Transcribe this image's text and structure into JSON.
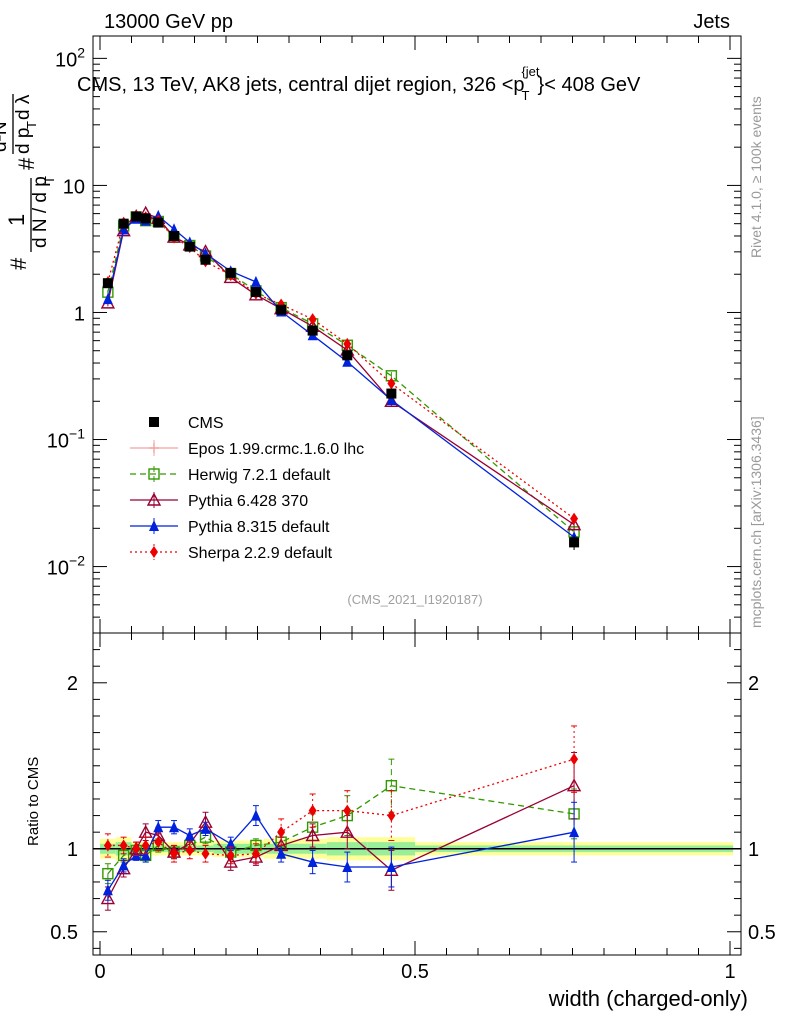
{
  "header": {
    "left": "13000 GeV pp",
    "right": "Jets"
  },
  "title": {
    "main": "CMS, 13 TeV, AK8 jets, central dijet region, 326 <p",
    "sub_T": "T",
    "sup_jet": "{jet",
    "tail": "}< 408 GeV"
  },
  "side_labels": {
    "rivet": "Rivet 4.1.0, ≥ 100k events",
    "mcplots": "mcplots.cern.ch [arXiv:1306.3436]"
  },
  "watermark": "(CMS_2021_I1920187)",
  "y_label_main": {
    "hash1": "#",
    "one": "1",
    "dN": "d N / d p",
    "T1": "T",
    "hash2": "#",
    "dpT": "d p",
    "T2": "T",
    "d2N": "d²N",
    "dlambda": "d λ"
  },
  "y_label_ratio": "Ratio to CMS",
  "x_label": "width (charged-only)",
  "colors": {
    "CMS": "#000000",
    "Epos": "#f4a0a0",
    "Herwig": "#339900",
    "Pythia6": "#990033",
    "Pythia8": "#0022dd",
    "Sherpa": "#ee0000",
    "band_yellow": "#ffff99",
    "band_green": "#99ee99"
  },
  "chart_data": {
    "type": "line",
    "main_panel": {
      "yscale": "log",
      "ylim": [
        0.003,
        150
      ],
      "yticks": [
        {
          "v": 0.01,
          "label": "10",
          "exp": "−2"
        },
        {
          "v": 0.1,
          "label": "10",
          "exp": "−1"
        },
        {
          "v": 1,
          "label": "1",
          "exp": ""
        },
        {
          "v": 10,
          "label": "10",
          "exp": ""
        },
        {
          "v": 100,
          "label": "10",
          "exp": "2"
        }
      ]
    },
    "ratio_panel": {
      "ylim": [
        0.36,
        2.3
      ],
      "yticks": [
        {
          "v": 0.5,
          "label": "0.5"
        },
        {
          "v": 1,
          "label": "1"
        },
        {
          "v": 2,
          "label": "2"
        }
      ]
    },
    "xlim": [
      -0.015,
      1.005
    ],
    "xticks": [
      {
        "v": 0,
        "label": "0"
      },
      {
        "v": 0.5,
        "label": "0.5"
      },
      {
        "v": 1,
        "label": "1"
      }
    ],
    "x": [
      0.0125,
      0.0375,
      0.0575,
      0.0725,
      0.0925,
      0.1175,
      0.1425,
      0.1675,
      0.2075,
      0.2475,
      0.2875,
      0.3375,
      0.3925,
      0.4625,
      0.7525
    ],
    "bin_edges": [
      0,
      0.025,
      0.05,
      0.065,
      0.08,
      0.105,
      0.13,
      0.155,
      0.18,
      0.235,
      0.26,
      0.315,
      0.36,
      0.425,
      0.5,
      1.005
    ],
    "cms": {
      "name": "CMS",
      "values": [
        1.7,
        5.0,
        5.7,
        5.5,
        5.1,
        4.0,
        3.3,
        2.6,
        2.05,
        1.45,
        1.05,
        0.72,
        0.46,
        0.23,
        0.0155
      ],
      "errors": [
        0.1,
        0.2,
        0.2,
        0.2,
        0.2,
        0.15,
        0.12,
        0.1,
        0.08,
        0.06,
        0.05,
        0.04,
        0.03,
        0.02,
        0.002
      ]
    },
    "band_yellow_halfwidth": [
      0.06,
      0.07,
      0.04,
      0.04,
      0.04,
      0.04,
      0.04,
      0.04,
      0.05,
      0.05,
      0.06,
      0.06,
      0.07,
      0.07,
      0.04
    ],
    "band_green_halfwidth": [
      0.03,
      0.04,
      0.02,
      0.02,
      0.02,
      0.02,
      0.02,
      0.02,
      0.03,
      0.03,
      0.03,
      0.03,
      0.04,
      0.04,
      0.02
    ],
    "series": [
      {
        "name": "Epos 1.99.crmc.1.6.0 lhc",
        "key": "Epos",
        "marker": "cross",
        "dash": "",
        "ratio": [],
        "ratio_err": []
      },
      {
        "name": "Herwig 7.2.1 default",
        "key": "Herwig",
        "marker": "square-open",
        "dash": "6,4",
        "ratio": [
          0.85,
          0.96,
          0.99,
          0.96,
          1.02,
          0.98,
          1.02,
          1.07,
          0.98,
          1.02,
          1.04,
          1.13,
          1.2,
          1.38,
          1.21
        ],
        "ratio_err": [
          0.06,
          0.04,
          0.03,
          0.04,
          0.04,
          0.04,
          0.04,
          0.04,
          0.04,
          0.04,
          0.05,
          0.08,
          0.12,
          0.16,
          0.15
        ]
      },
      {
        "name": "Pythia 6.428 370",
        "key": "Pythia6",
        "marker": "triangle-open",
        "dash": "",
        "ratio": [
          0.7,
          0.88,
          1.0,
          1.1,
          1.08,
          0.98,
          1.03,
          1.16,
          0.92,
          0.95,
          1.02,
          1.08,
          1.1,
          0.87,
          1.38
        ],
        "ratio_err": [
          0.07,
          0.05,
          0.04,
          0.05,
          0.05,
          0.04,
          0.05,
          0.06,
          0.05,
          0.05,
          0.05,
          0.07,
          0.1,
          0.12,
          0.2
        ]
      },
      {
        "name": "Pythia 8.315 default",
        "key": "Pythia8",
        "marker": "triangle-filled",
        "dash": "",
        "ratio": [
          0.75,
          0.9,
          0.96,
          0.96,
          1.13,
          1.13,
          1.08,
          1.12,
          1.03,
          1.2,
          0.97,
          0.92,
          0.89,
          0.89,
          1.1
        ],
        "ratio_err": [
          0.06,
          0.04,
          0.03,
          0.04,
          0.04,
          0.04,
          0.04,
          0.04,
          0.04,
          0.06,
          0.05,
          0.07,
          0.09,
          0.12,
          0.18
        ]
      },
      {
        "name": "Sherpa 2.2.9 default",
        "key": "Sherpa",
        "marker": "diamond",
        "dash": "2,3",
        "ratio": [
          1.02,
          1.02,
          1.0,
          1.02,
          1.04,
          0.97,
          0.99,
          0.97,
          0.96,
          0.97,
          1.1,
          1.23,
          1.23,
          1.2,
          1.54
        ],
        "ratio_err": [
          0.07,
          0.05,
          0.04,
          0.05,
          0.05,
          0.05,
          0.05,
          0.05,
          0.05,
          0.06,
          0.08,
          0.1,
          0.12,
          0.15,
          0.2
        ]
      }
    ]
  }
}
